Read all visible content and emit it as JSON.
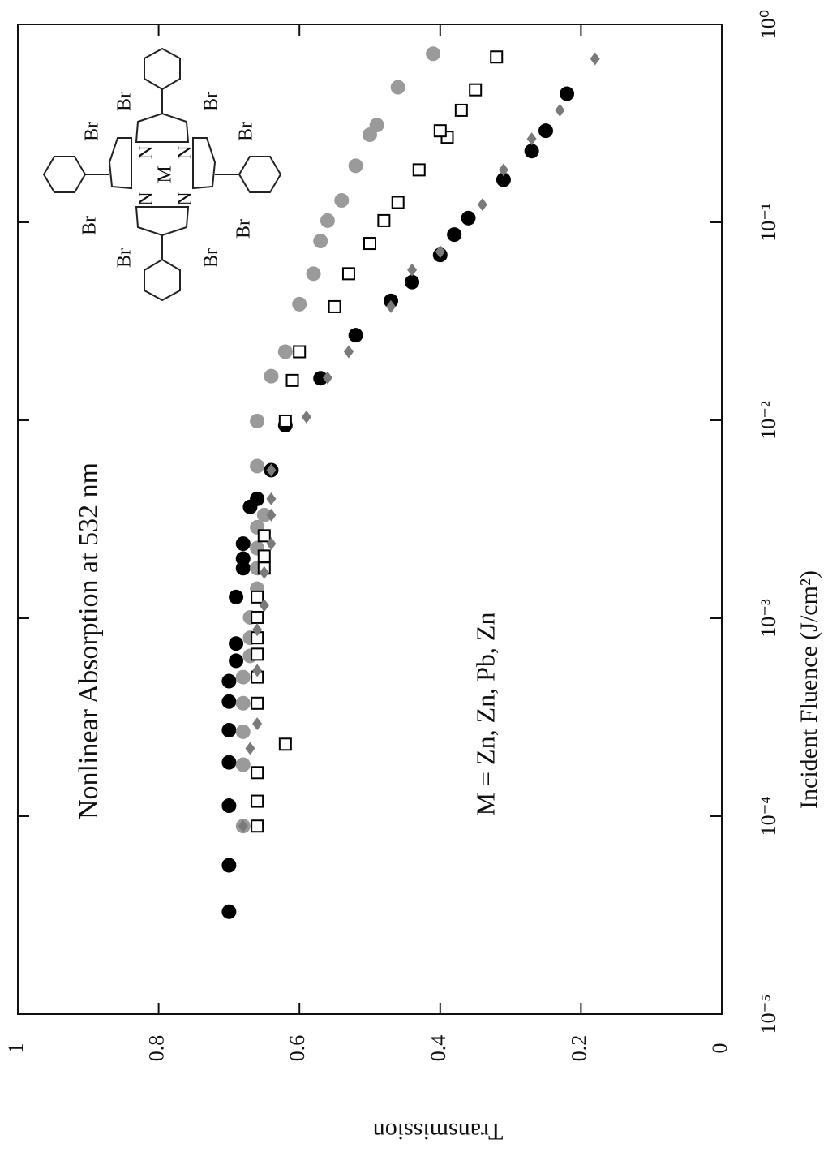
{
  "chart_data": {
    "type": "scatter",
    "title": "Nonlinear Absorption at 532 nm",
    "annotation": "M = Zn, Zn, Pb, Zn",
    "x_label": "Incident Fluence (J/cm²)",
    "y_label": "Transmission",
    "log_x": true,
    "xlim": [
      1e-05,
      1
    ],
    "xticks": [
      {
        "value": 1e-05,
        "label": "10⁻⁵"
      },
      {
        "value": 0.0001,
        "label": "10⁻⁴"
      },
      {
        "value": 0.001,
        "label": "10⁻³"
      },
      {
        "value": 0.01,
        "label": "10⁻²"
      },
      {
        "value": 0.1,
        "label": "10⁻¹"
      },
      {
        "value": 1,
        "label": "10⁰"
      }
    ],
    "ylim": [
      0,
      1
    ],
    "yticks": [
      0,
      0.2,
      0.4,
      0.6,
      0.8,
      1
    ],
    "molecule": {
      "center": "M",
      "nitrogen": "N",
      "bromine": "Br"
    },
    "series": [
      {
        "color": "#000000",
        "marker": "circle",
        "x": [
          3.29e-05,
          5.65e-05,
          0.000113,
          0.000187,
          0.000272,
          0.000379,
          0.000481,
          0.00061,
          0.000745,
          0.00128,
          0.00179,
          0.002,
          0.00238,
          0.00365,
          0.00401,
          0.0056,
          0.00944,
          0.0163,
          0.0269,
          0.0401,
          0.0499,
          0.0684,
          0.0867,
          0.105,
          0.164,
          0.229,
          0.29,
          0.446
        ],
        "values": [
          0.7,
          0.7,
          0.7,
          0.7,
          0.7,
          0.7,
          0.7,
          0.69,
          0.69,
          0.69,
          0.68,
          0.68,
          0.68,
          0.67,
          0.66,
          0.64,
          0.62,
          0.57,
          0.52,
          0.47,
          0.44,
          0.4,
          0.38,
          0.36,
          0.31,
          0.27,
          0.25,
          0.22
        ]
      },
      {
        "color": "#9a9a9a",
        "marker": "circle",
        "x": [
          8.91e-05,
          0.000182,
          0.000267,
          0.000372,
          0.000504,
          0.000645,
          0.000796,
          0.00101,
          0.00141,
          0.00179,
          0.00226,
          0.00288,
          0.00332,
          0.00587,
          0.00991,
          0.0167,
          0.0222,
          0.0386,
          0.055,
          0.0804,
          0.102,
          0.129,
          0.193,
          0.277,
          0.31,
          0.481,
          0.71
        ],
        "values": [
          0.68,
          0.68,
          0.68,
          0.68,
          0.68,
          0.67,
          0.67,
          0.67,
          0.66,
          0.66,
          0.66,
          0.66,
          0.65,
          0.66,
          0.66,
          0.64,
          0.62,
          0.6,
          0.58,
          0.57,
          0.56,
          0.54,
          0.52,
          0.5,
          0.49,
          0.46,
          0.41
        ]
      },
      {
        "color": "#000000",
        "marker": "open-square",
        "x": [
          8.91e-05,
          0.000119,
          0.000166,
          0.000231,
          0.000372,
          0.000504,
          0.000658,
          0.000796,
          0.00101,
          0.00128,
          0.00179,
          0.00206,
          0.00261,
          0.00991,
          0.0159,
          0.0222,
          0.0375,
          0.055,
          0.0782,
          0.102,
          0.126,
          0.184,
          0.269,
          0.29,
          0.368,
          0.467,
          0.684
        ],
        "values": [
          0.66,
          0.66,
          0.66,
          0.62,
          0.66,
          0.66,
          0.66,
          0.66,
          0.66,
          0.66,
          0.65,
          0.65,
          0.65,
          0.62,
          0.61,
          0.6,
          0.55,
          0.53,
          0.5,
          0.48,
          0.46,
          0.43,
          0.39,
          0.4,
          0.37,
          0.35,
          0.32
        ]
      },
      {
        "color": "#7a7a7a",
        "marker": "diamond",
        "x": [
          8.91e-05,
          0.00022,
          0.000293,
          0.000545,
          0.000875,
          0.00116,
          0.0017,
          0.00238,
          0.00332,
          0.00401,
          0.0056,
          0.0104,
          0.0164,
          0.0222,
          0.0375,
          0.0575,
          0.071,
          0.123,
          0.184,
          0.264,
          0.368,
          0.67
        ],
        "values": [
          0.68,
          0.67,
          0.66,
          0.66,
          0.66,
          0.65,
          0.65,
          0.64,
          0.64,
          0.64,
          0.64,
          0.59,
          0.56,
          0.53,
          0.47,
          0.44,
          0.4,
          0.34,
          0.31,
          0.27,
          0.23,
          0.18
        ]
      }
    ]
  }
}
